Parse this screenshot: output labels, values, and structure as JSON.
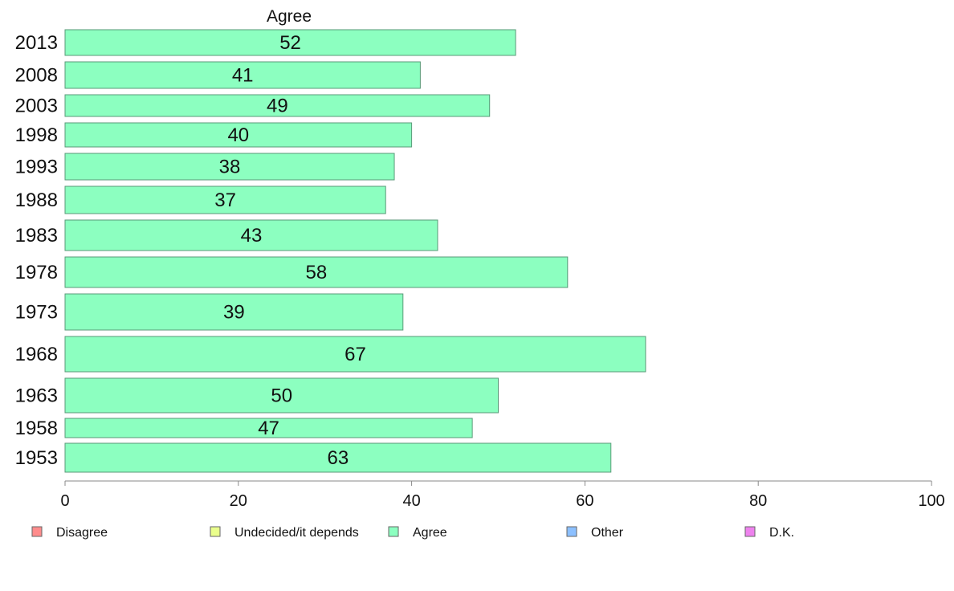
{
  "chart_data": {
    "type": "bar",
    "orientation": "horizontal",
    "title": "Agree",
    "categories": [
      "2013",
      "2008",
      "2003",
      "1998",
      "1993",
      "1988",
      "1983",
      "1978",
      "1973",
      "1968",
      "1963",
      "1958",
      "1953"
    ],
    "series": [
      {
        "name": "Agree",
        "color": "#8cffc0",
        "values": [
          52,
          41,
          49,
          40,
          38,
          37,
          43,
          58,
          39,
          67,
          50,
          47,
          63
        ]
      }
    ],
    "xlim": [
      0,
      100
    ],
    "xticks": [
      0,
      20,
      40,
      60,
      80,
      100
    ],
    "grid": false,
    "legend": {
      "placement": "bottom",
      "items": [
        {
          "label": "Disagree",
          "color": "#ff8c8c"
        },
        {
          "label": "Undecided/it depends",
          "color": "#eaff8c"
        },
        {
          "label": "Agree",
          "color": "#8cffc0"
        },
        {
          "label": "Other",
          "color": "#8cc0ff"
        },
        {
          "label": "D.K.",
          "color": "#ee82ee"
        }
      ]
    }
  }
}
